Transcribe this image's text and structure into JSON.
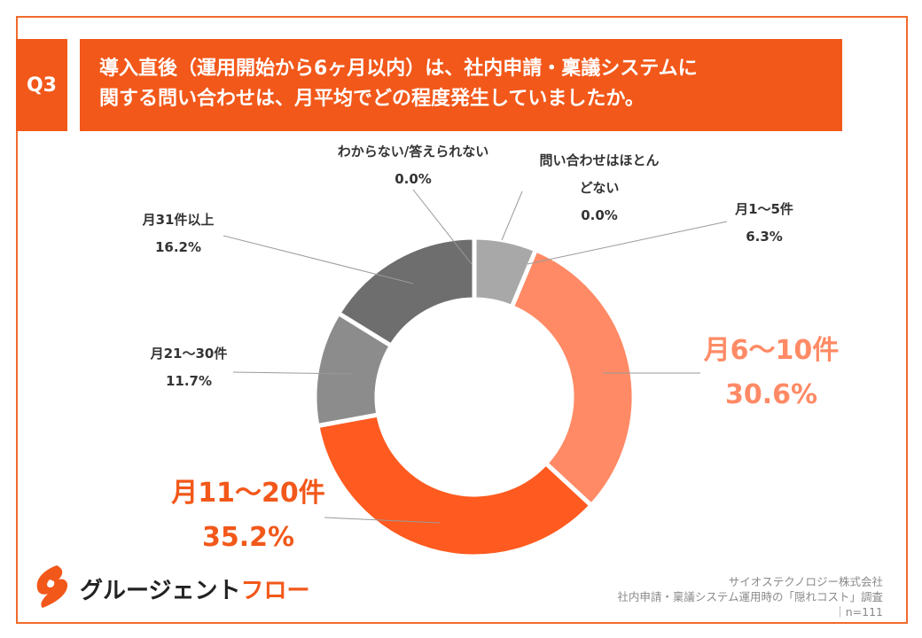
{
  "question": {
    "badge": "Q3",
    "line1": "導入直後（運用開始から6ヶ月以内）は、社内申請・稟議システムに",
    "line2": "関する問い合わせは、月平均でどの程度発生していましたか。"
  },
  "colors": {
    "accent": "#f2581a",
    "frame": "#f26b2c"
  },
  "chart_data": {
    "type": "pie",
    "donut": true,
    "unit": "%",
    "categories": [
      "問い合わせはほとんどない",
      "月1〜5件",
      "月6〜10件",
      "月11〜20件",
      "月21〜30件",
      "月31件以上",
      "わからない/答えられない"
    ],
    "values": [
      0.0,
      6.3,
      30.6,
      35.2,
      11.7,
      16.2,
      0.0
    ],
    "colors": [
      "#b4b4b4",
      "#a8a8a8",
      "#ff8a65",
      "#ff5a1f",
      "#8c8c8c",
      "#6e6e6e",
      "#999999"
    ],
    "labels": [
      {
        "line1": "問い合わせはほとん",
        "line2": "どない",
        "value": "0.0%",
        "highlight": false
      },
      {
        "line1": "月1〜5件",
        "line2": "",
        "value": "6.3%",
        "highlight": false
      },
      {
        "line1": "月6〜10件",
        "line2": "",
        "value": "30.6%",
        "highlight": true,
        "color": "#ff8a65"
      },
      {
        "line1": "月11〜20件",
        "line2": "",
        "value": "35.2%",
        "highlight": true,
        "color": "#f2581a"
      },
      {
        "line1": "月21〜30件",
        "line2": "",
        "value": "11.7%",
        "highlight": false
      },
      {
        "line1": "月31件以上",
        "line2": "",
        "value": "16.2%",
        "highlight": false
      },
      {
        "line1": "わからない/答えられない",
        "line2": "",
        "value": "0.0%",
        "highlight": false
      }
    ]
  },
  "logo": {
    "main": "グルージェント",
    "accent": "フロー"
  },
  "source": {
    "company": "サイオステクノロジー株式会社",
    "survey": "社内申請・稟議システム運用時の「隠れコスト」調査",
    "n": "｜n=111"
  }
}
